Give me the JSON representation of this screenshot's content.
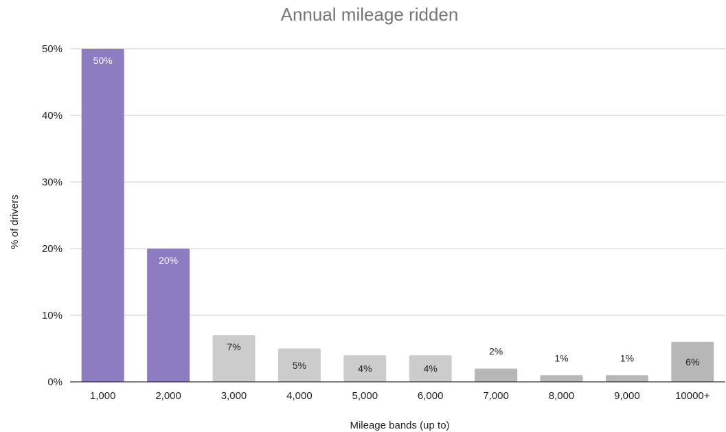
{
  "chart_data": {
    "type": "bar",
    "title": "Annual mileage ridden",
    "xlabel": "Mileage bands (up to)",
    "ylabel": "% of drivers",
    "categories": [
      "1,000",
      "2,000",
      "3,000",
      "4,000",
      "5,000",
      "6,000",
      "7,000",
      "8,000",
      "9,000",
      "10000+"
    ],
    "values": [
      50,
      20,
      7,
      5,
      4,
      4,
      2,
      1,
      1,
      6
    ],
    "data_labels": [
      "50%",
      "20%",
      "7%",
      "5%",
      "4%",
      "4%",
      "2%",
      "1%",
      "1%",
      "6%"
    ],
    "bar_colors": [
      "#8e7cc3",
      "#8e7cc3",
      "#cccccc",
      "#cccccc",
      "#cccccc",
      "#cccccc",
      "#b7b7b7",
      "#b7b7b7",
      "#b7b7b7",
      "#b7b7b7"
    ],
    "label_colors": [
      "#ffffff",
      "#ffffff",
      "#222222",
      "#222222",
      "#222222",
      "#222222",
      "#222222",
      "#222222",
      "#222222",
      "#222222"
    ],
    "ylim": [
      0,
      50
    ],
    "yticks": [
      0,
      10,
      20,
      30,
      40,
      50
    ],
    "ytick_labels": [
      "0%",
      "10%",
      "20%",
      "30%",
      "40%",
      "50%"
    ],
    "grid": true,
    "legend": "none"
  }
}
